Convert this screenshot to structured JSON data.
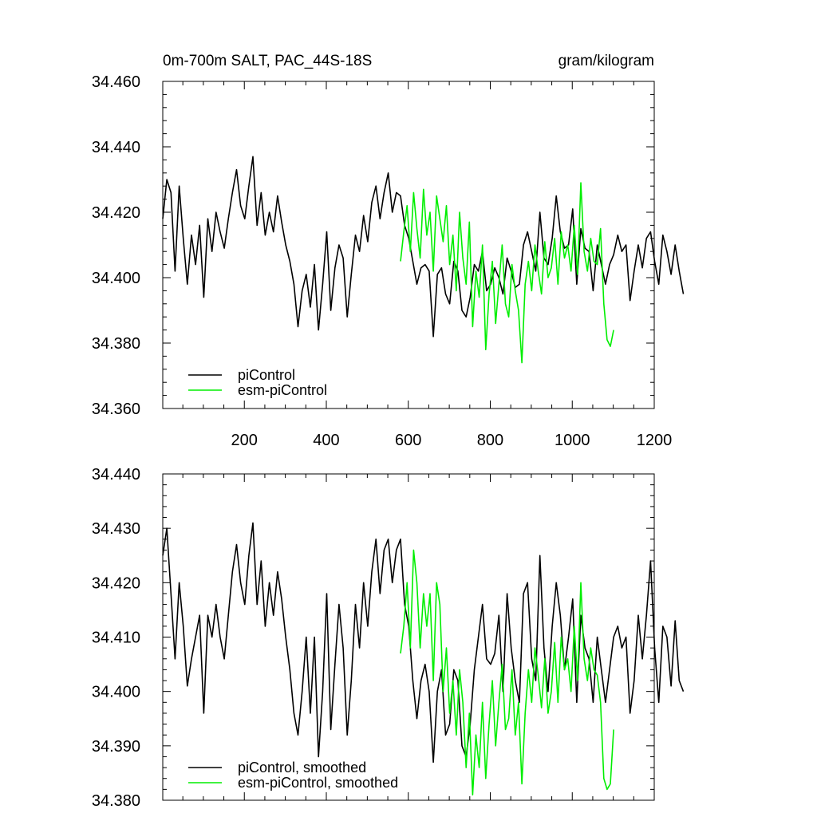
{
  "colors": {
    "piControl": "#000000",
    "esm": "#00ee00"
  },
  "chart_data": [
    {
      "type": "line",
      "title": "0m-700m SALT, PAC_44S-18S",
      "units": "gram/kilogram",
      "xlim": [
        1,
        1200
      ],
      "ylim": [
        34.36,
        34.46
      ],
      "xticks": [
        200,
        400,
        600,
        800,
        1000,
        1200
      ],
      "xtick_labels": [
        "200",
        "400",
        "600",
        "800",
        "1000",
        "1200"
      ],
      "yticks": [
        34.36,
        34.38,
        34.4,
        34.42,
        34.44,
        34.46
      ],
      "ytick_labels": [
        "34.360",
        "34.380",
        "34.400",
        "34.420",
        "34.440",
        "34.460"
      ],
      "legend": [
        "piControl",
        "esm-piControl"
      ],
      "series": [
        {
          "name": "piControl",
          "color": "#000000",
          "x_start": 1,
          "x_step": 10,
          "values": [
            34.418,
            34.43,
            34.426,
            34.402,
            34.428,
            34.412,
            34.398,
            34.413,
            34.404,
            34.416,
            34.394,
            34.418,
            34.408,
            34.42,
            34.414,
            34.409,
            34.418,
            34.426,
            34.433,
            34.422,
            34.418,
            34.428,
            34.437,
            34.416,
            34.426,
            34.413,
            34.42,
            34.414,
            34.425,
            34.417,
            34.41,
            34.405,
            34.398,
            34.385,
            34.396,
            34.401,
            34.391,
            34.404,
            34.384,
            34.398,
            34.414,
            34.39,
            34.403,
            34.41,
            34.406,
            34.388,
            34.401,
            34.413,
            34.408,
            34.419,
            34.411,
            34.423,
            34.428,
            34.418,
            34.426,
            34.432,
            34.42,
            34.426,
            34.425,
            34.416,
            34.412,
            34.405,
            34.398,
            34.403,
            34.404,
            34.402,
            34.382,
            34.401,
            34.403,
            34.395,
            34.392,
            34.405,
            34.402,
            34.39,
            34.388,
            34.394,
            34.404,
            34.402,
            34.408,
            34.396,
            34.398,
            34.403,
            34.4,
            34.395,
            34.406,
            34.402,
            34.397,
            34.398,
            34.41,
            34.414,
            34.408,
            34.402,
            34.42,
            34.406,
            34.404,
            34.412,
            34.425,
            34.414,
            34.409,
            34.41,
            34.421,
            34.398,
            34.415,
            34.409,
            34.408,
            34.396,
            34.41,
            34.404,
            34.398,
            34.404,
            34.407,
            34.413,
            34.408,
            34.41,
            34.393,
            34.402,
            34.41,
            34.403,
            34.412,
            34.414,
            34.405,
            34.398,
            34.413,
            34.408,
            34.401,
            34.41,
            34.402,
            34.395
          ]
        },
        {
          "name": "esm-piControl",
          "color": "#00ee00",
          "x_start": 581,
          "x_step": 8,
          "values": [
            34.405,
            34.414,
            34.422,
            34.408,
            34.426,
            34.415,
            34.406,
            34.427,
            34.413,
            34.42,
            34.402,
            34.425,
            34.418,
            34.411,
            34.422,
            34.404,
            34.413,
            34.396,
            34.42,
            34.406,
            34.398,
            34.417,
            34.385,
            34.402,
            34.394,
            34.41,
            34.378,
            34.395,
            34.405,
            34.386,
            34.398,
            34.41,
            34.392,
            34.388,
            34.404,
            34.396,
            34.39,
            34.374,
            34.398,
            34.405,
            34.396,
            34.41,
            34.402,
            34.395,
            34.411,
            34.4,
            34.403,
            34.412,
            34.398,
            34.414,
            34.406,
            34.41,
            34.402,
            34.416,
            34.401,
            34.429,
            34.408,
            34.402,
            34.412,
            34.405,
            34.404,
            34.415,
            34.392,
            34.381,
            34.379,
            34.384
          ]
        }
      ]
    },
    {
      "type": "line",
      "title": "",
      "units": "",
      "xlim": [
        1,
        1200
      ],
      "ylim": [
        34.38,
        34.44
      ],
      "xticks": [
        200,
        400,
        600,
        800,
        1000,
        1200
      ],
      "xtick_labels": [],
      "yticks": [
        34.38,
        34.39,
        34.4,
        34.41,
        34.42,
        34.43,
        34.44
      ],
      "ytick_labels": [
        "34.380",
        "34.390",
        "34.400",
        "34.410",
        "34.420",
        "34.430",
        "34.440"
      ],
      "legend": [
        "piControl, smoothed",
        "esm-piControl, smoothed"
      ],
      "series": [
        {
          "name": "piControl, smoothed",
          "color": "#000000",
          "x_start": 1,
          "x_step": 10,
          "values": [
            34.425,
            34.43,
            34.418,
            34.406,
            34.42,
            34.412,
            34.401,
            34.406,
            34.41,
            34.414,
            34.396,
            34.414,
            34.41,
            34.416,
            34.41,
            34.406,
            34.414,
            34.422,
            34.427,
            34.42,
            34.416,
            34.425,
            34.431,
            34.416,
            34.424,
            34.412,
            34.42,
            34.414,
            34.422,
            34.417,
            34.41,
            34.404,
            34.396,
            34.392,
            34.4,
            34.41,
            34.396,
            34.41,
            34.388,
            34.4,
            34.418,
            34.393,
            34.405,
            34.416,
            34.408,
            34.392,
            34.402,
            34.416,
            34.408,
            34.42,
            34.412,
            34.422,
            34.428,
            34.418,
            34.426,
            34.428,
            34.42,
            34.426,
            34.428,
            34.416,
            34.412,
            34.402,
            34.395,
            34.402,
            34.405,
            34.4,
            34.387,
            34.4,
            34.404,
            34.392,
            34.394,
            34.404,
            34.402,
            34.39,
            34.388,
            34.394,
            34.404,
            34.41,
            34.416,
            34.406,
            34.405,
            34.407,
            34.414,
            34.4,
            34.418,
            34.408,
            34.402,
            34.398,
            34.418,
            34.42,
            34.406,
            34.402,
            34.425,
            34.408,
            34.4,
            34.412,
            34.42,
            34.414,
            34.404,
            34.41,
            34.417,
            34.398,
            34.414,
            34.408,
            34.406,
            34.398,
            34.41,
            34.404,
            34.398,
            34.404,
            34.41,
            34.412,
            34.408,
            34.41,
            34.396,
            34.402,
            34.414,
            34.406,
            34.414,
            34.424,
            34.408,
            34.398,
            34.412,
            34.41,
            34.401,
            34.413,
            34.402,
            34.4
          ]
        },
        {
          "name": "esm-piControl, smoothed",
          "color": "#00ee00",
          "x_start": 581,
          "x_step": 8,
          "values": [
            34.407,
            34.412,
            34.42,
            34.408,
            34.426,
            34.42,
            34.408,
            34.418,
            34.412,
            34.418,
            34.402,
            34.42,
            34.416,
            34.4,
            34.408,
            34.396,
            34.402,
            34.392,
            34.404,
            34.398,
            34.386,
            34.396,
            34.381,
            34.392,
            34.386,
            34.398,
            34.384,
            34.394,
            34.402,
            34.39,
            34.398,
            34.405,
            34.393,
            34.395,
            34.404,
            34.392,
            34.398,
            34.383,
            34.396,
            34.404,
            34.398,
            34.408,
            34.403,
            34.397,
            34.406,
            34.396,
            34.4,
            34.409,
            34.398,
            34.41,
            34.404,
            34.406,
            34.4,
            34.412,
            34.402,
            34.42,
            34.406,
            34.402,
            34.408,
            34.404,
            34.403,
            34.398,
            34.384,
            34.382,
            34.383,
            34.393
          ]
        }
      ]
    }
  ]
}
